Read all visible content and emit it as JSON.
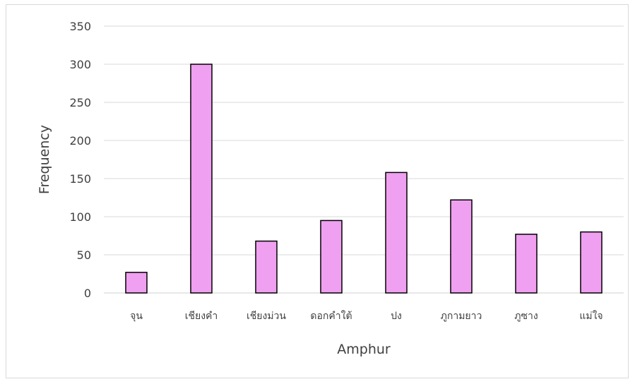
{
  "chart_data": {
    "type": "bar",
    "title": "",
    "xlabel": "Amphur",
    "ylabel": "Frequency",
    "categories": [
      "จุน",
      "เชียงคำ",
      "เชียงม่วน",
      "ดอกคำใต้",
      "ปง",
      "ภูกามยาว",
      "ภูซาง",
      "แม่ใจ"
    ],
    "values": [
      27,
      300,
      68,
      95,
      158,
      122,
      77,
      80
    ],
    "ylim": [
      0,
      350
    ],
    "yticks": [
      "0",
      "50",
      "100",
      "150",
      "200",
      "250",
      "300",
      "350"
    ],
    "grid": true,
    "legend": "none",
    "colors": {
      "bar_fill": "#f0a0f0",
      "bar_stroke": "#000000",
      "grid": "#d9d9d9",
      "text": "#404040"
    }
  }
}
